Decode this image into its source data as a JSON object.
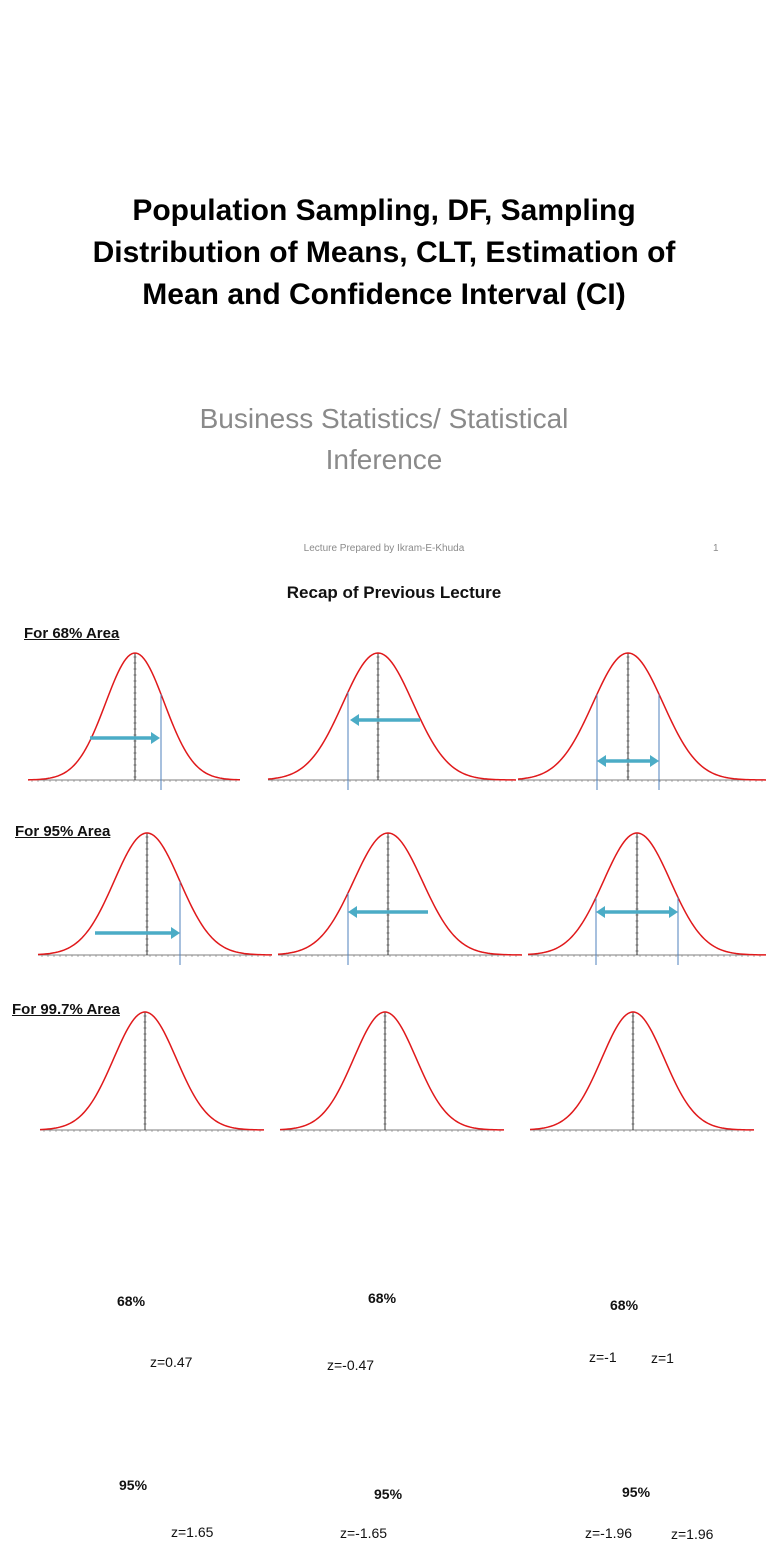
{
  "slide1": {
    "title_lines": [
      "Population Sampling, DF, Sampling",
      "Distribution of Means, CLT, Estimation of",
      "Mean and Confidence Interval (CI)"
    ],
    "subtitle_lines": [
      "Business Statistics/ Statistical",
      "Inference"
    ],
    "footer_text": "Lecture Prepared by Ikram-E-Khuda",
    "page_number": "1"
  },
  "slide2": {
    "title": "Recap of Previous Lecture",
    "sections": [
      {
        "heading": "For 68% Area",
        "curves": [
          {
            "percent_label": "68%",
            "z_labels": [
              "z=0.47"
            ]
          },
          {
            "percent_label": "68%",
            "z_labels": [
              "z=-0.47"
            ]
          },
          {
            "percent_label": "68%",
            "z_labels": [
              "z=-1",
              "z=1"
            ]
          }
        ]
      },
      {
        "heading": "For 95% Area",
        "curves": [
          {
            "percent_label": "95%",
            "z_labels": [
              "z=1.65"
            ]
          },
          {
            "percent_label": "95%",
            "z_labels": [
              "z=-1.65"
            ]
          },
          {
            "percent_label": "95%",
            "z_labels": [
              "z=-1.96",
              "z=1.96"
            ]
          }
        ]
      },
      {
        "heading": "For 99.7% Area",
        "curves": []
      }
    ]
  },
  "colors": {
    "curve": "#e0191b",
    "arrow": "#4bacc6",
    "z_line": "#4f81bd",
    "subtitle": "#8a8a8a"
  }
}
